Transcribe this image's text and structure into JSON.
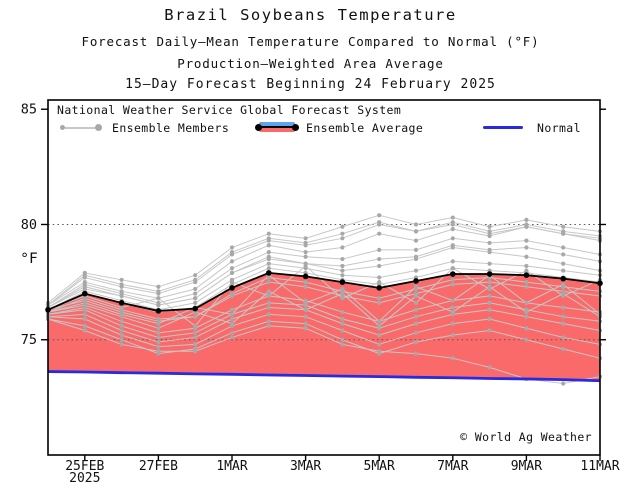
{
  "title": {
    "line1": "Brazil Soybeans Temperature",
    "line2": "Forecast Daily–Mean Temperature Compared to Normal (°F)",
    "line3": "Production–Weighted Area Average",
    "line4": "15–Day Forecast Beginning 24 February 2025"
  },
  "legend": {
    "source_line": "National Weather Service Global Forecast System",
    "members_label": "Ensemble Members",
    "average_label": "Ensemble Average",
    "normal_label": "Normal"
  },
  "y_axis_label": "°F",
  "watermark": "© World Ag Weather",
  "chart_data": {
    "type": "line",
    "title": "Brazil Soybeans Temperature",
    "xlabel": "",
    "ylabel": "°F",
    "ylim": [
      70,
      85.4
    ],
    "y_ticks": [
      75,
      80,
      85
    ],
    "grid_y": [
      75,
      80
    ],
    "legend_position": "top-left-inside",
    "x": [
      "24FEB",
      "25FEB",
      "26FEB",
      "27FEB",
      "28FEB",
      "1MAR",
      "2MAR",
      "3MAR",
      "4MAR",
      "5MAR",
      "6MAR",
      "7MAR",
      "8MAR",
      "9MAR",
      "10MAR",
      "11MAR"
    ],
    "x_ticks": [
      {
        "index": 1,
        "label": "25FEB",
        "sublabel": "2025"
      },
      {
        "index": 3,
        "label": "27FEB"
      },
      {
        "index": 5,
        "label": "1MAR"
      },
      {
        "index": 7,
        "label": "3MAR"
      },
      {
        "index": 9,
        "label": "5MAR"
      },
      {
        "index": 11,
        "label": "7MAR"
      },
      {
        "index": 13,
        "label": "9MAR"
      },
      {
        "index": 15,
        "label": "11MAR"
      }
    ],
    "series": {
      "ensemble_average": [
        76.3,
        77.0,
        76.6,
        76.25,
        76.35,
        77.25,
        77.9,
        77.75,
        77.5,
        77.25,
        77.55,
        77.85,
        77.85,
        77.8,
        77.65,
        77.45
      ],
      "normal": [
        73.62,
        73.6,
        73.57,
        73.55,
        73.52,
        73.5,
        73.47,
        73.45,
        73.42,
        73.4,
        73.37,
        73.35,
        73.32,
        73.3,
        73.27,
        73.22
      ],
      "members": [
        [
          76.4,
          77.2,
          76.9,
          76.5,
          76.8,
          77.9,
          78.6,
          78.3,
          78.0,
          78.2,
          78.5,
          79.0,
          78.8,
          78.6,
          78.3,
          78.0
        ],
        [
          76.2,
          76.8,
          76.3,
          75.9,
          76.0,
          77.0,
          77.7,
          77.5,
          77.1,
          76.8,
          77.2,
          77.6,
          77.7,
          77.5,
          77.3,
          77.1
        ],
        [
          76.5,
          77.5,
          77.1,
          76.8,
          77.2,
          78.4,
          79.1,
          78.8,
          79.0,
          79.6,
          79.3,
          79.8,
          79.5,
          79.9,
          79.6,
          79.3
        ],
        [
          76.1,
          76.4,
          75.8,
          75.3,
          75.5,
          76.3,
          76.9,
          76.7,
          76.2,
          75.8,
          76.3,
          76.7,
          76.9,
          76.6,
          76.4,
          76.2
        ],
        [
          76.3,
          77.0,
          76.6,
          76.2,
          76.4,
          77.4,
          78.1,
          77.9,
          77.6,
          77.4,
          77.7,
          78.1,
          78.0,
          77.9,
          77.7,
          77.5
        ],
        [
          76.6,
          77.9,
          77.6,
          77.3,
          77.8,
          79.0,
          79.6,
          79.4,
          79.9,
          80.4,
          80.0,
          80.3,
          79.9,
          80.2,
          79.9,
          79.7
        ],
        [
          76.0,
          76.1,
          75.4,
          74.9,
          75.1,
          75.9,
          76.4,
          76.3,
          75.7,
          75.2,
          75.7,
          76.1,
          76.3,
          76.0,
          75.7,
          75.4
        ],
        [
          76.2,
          76.6,
          76.1,
          75.7,
          76.4,
          76.1,
          77.8,
          76.6,
          77.2,
          75.8,
          77.3,
          76.7,
          77.8,
          76.6,
          77.4,
          76.1
        ],
        [
          76.4,
          77.4,
          77.0,
          76.6,
          77.0,
          78.1,
          78.8,
          78.6,
          78.5,
          78.9,
          78.9,
          79.4,
          79.2,
          79.3,
          79.0,
          78.7
        ],
        [
          75.9,
          75.6,
          75.0,
          74.4,
          74.6,
          75.3,
          75.8,
          75.7,
          75.0,
          74.4,
          74.9,
          75.2,
          75.4,
          75.0,
          74.6,
          74.2
        ],
        [
          76.3,
          76.9,
          76.4,
          76.8,
          75.6,
          77.5,
          76.9,
          78.2,
          76.8,
          77.5,
          76.6,
          78.1,
          77.2,
          78.0,
          76.9,
          77.6
        ],
        [
          76.5,
          77.7,
          77.3,
          77.0,
          77.5,
          78.7,
          79.3,
          79.1,
          79.4,
          80.0,
          79.7,
          80.1,
          79.7,
          80.0,
          79.7,
          79.5
        ],
        [
          76.1,
          76.3,
          75.6,
          75.1,
          75.3,
          76.1,
          76.6,
          76.5,
          75.9,
          75.5,
          76.0,
          76.4,
          76.6,
          76.3,
          76.0,
          75.8
        ],
        [
          76.3,
          77.1,
          76.7,
          76.3,
          76.6,
          77.6,
          78.3,
          78.1,
          77.8,
          77.7,
          78.0,
          78.4,
          78.3,
          78.2,
          78.0,
          77.8
        ],
        [
          76.0,
          75.9,
          75.2,
          74.7,
          74.8,
          75.6,
          76.1,
          76.0,
          75.4,
          74.8,
          75.3,
          75.7,
          75.9,
          75.5,
          75.1,
          74.8
        ],
        [
          76.4,
          77.3,
          76.9,
          76.5,
          76.8,
          77.9,
          78.5,
          78.3,
          78.2,
          78.5,
          78.6,
          79.1,
          78.9,
          79.0,
          78.7,
          78.4
        ],
        [
          76.2,
          76.5,
          76.0,
          75.5,
          76.2,
          75.7,
          77.1,
          76.3,
          77.0,
          75.6,
          76.9,
          76.2,
          77.3,
          76.2,
          77.0,
          76.0
        ],
        [
          76.5,
          77.8,
          77.4,
          77.1,
          77.6,
          78.8,
          79.4,
          79.2,
          79.6,
          80.1,
          79.7,
          80.0,
          79.6,
          79.9,
          79.6,
          79.4
        ],
        [
          75.9,
          75.4,
          74.8,
          74.5,
          74.5,
          75.1,
          75.6,
          75.5,
          74.8,
          74.5,
          74.4,
          74.2,
          73.8,
          73.3,
          73.1,
          73.4
        ],
        [
          76.3,
          76.7,
          76.2,
          75.8,
          76.0,
          76.9,
          77.5,
          77.3,
          76.9,
          76.6,
          77.0,
          77.4,
          77.5,
          77.3,
          77.1,
          76.9
        ]
      ]
    },
    "colors": {
      "above_normal_fill": "#fa6a6a",
      "below_normal_fill": "#5ea2f0",
      "member_line": "#c7c7c7",
      "member_dot": "#a8a8a8",
      "average_line": "#000000",
      "normal_line": "#2a2ae0",
      "grid": "#555555"
    }
  }
}
